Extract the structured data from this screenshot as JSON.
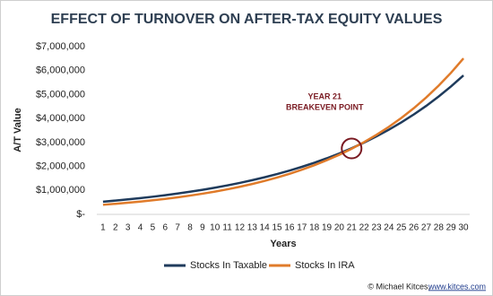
{
  "chart_data": {
    "type": "line",
    "title": "EFFECT OF TURNOVER ON AFTER-TAX EQUITY VALUES",
    "x_label": "Years",
    "y_label": "A/T Value",
    "x": [
      1,
      2,
      3,
      4,
      5,
      6,
      7,
      8,
      9,
      10,
      11,
      12,
      13,
      14,
      15,
      16,
      17,
      18,
      19,
      20,
      21,
      22,
      23,
      24,
      25,
      26,
      27,
      28,
      29,
      30
    ],
    "series": [
      {
        "name": "Stocks In Taxable",
        "color": "#1f3b5c",
        "values": [
          530000,
          576000,
          625000,
          679000,
          737000,
          801000,
          870000,
          944000,
          1025000,
          1114000,
          1209000,
          1313000,
          1426000,
          1549000,
          1682000,
          1827000,
          1984000,
          2154000,
          2340000,
          2541000,
          2760000,
          2997000,
          3255000,
          3535000,
          3839000,
          4169000,
          4527000,
          4917000,
          5340000,
          5799000
        ]
      },
      {
        "name": "Stocks In IRA",
        "color": "#e07b2a",
        "values": [
          400000,
          440000,
          485000,
          534000,
          588000,
          647000,
          712000,
          784000,
          863000,
          950000,
          1046000,
          1152000,
          1268000,
          1396000,
          1537000,
          1692000,
          1863000,
          2051000,
          2259000,
          2487000,
          2738000,
          3015000,
          3319000,
          3654000,
          4023000,
          4430000,
          4877000,
          5370000,
          5912000,
          6509000
        ]
      }
    ],
    "xlim": [
      0.5,
      30.5
    ],
    "xticks": [
      1,
      2,
      3,
      4,
      5,
      6,
      7,
      8,
      9,
      10,
      11,
      12,
      13,
      14,
      15,
      16,
      17,
      18,
      19,
      20,
      21,
      22,
      23,
      24,
      25,
      26,
      27,
      28,
      29,
      30
    ],
    "ylim": [
      0,
      7000000
    ],
    "yticks": [
      {
        "value": 0,
        "label": "$-"
      },
      {
        "value": 1000000,
        "label": "$1,000,000"
      },
      {
        "value": 2000000,
        "label": "$2,000,000"
      },
      {
        "value": 3000000,
        "label": "$3,000,000"
      },
      {
        "value": 4000000,
        "label": "$4,000,000"
      },
      {
        "value": 5000000,
        "label": "$5,000,000"
      },
      {
        "value": 6000000,
        "label": "$6,000,000"
      },
      {
        "value": 7000000,
        "label": "$7,000,000"
      }
    ],
    "grid": false,
    "legend": "bottom",
    "annotation": {
      "lines": [
        "YEAR 21",
        "BREAKEVEN POINT"
      ],
      "x": 21,
      "y": 2750000,
      "color": "#7a1a22"
    },
    "credit": "© Michael Kitces,",
    "credit_link": "www.kitces.com"
  }
}
